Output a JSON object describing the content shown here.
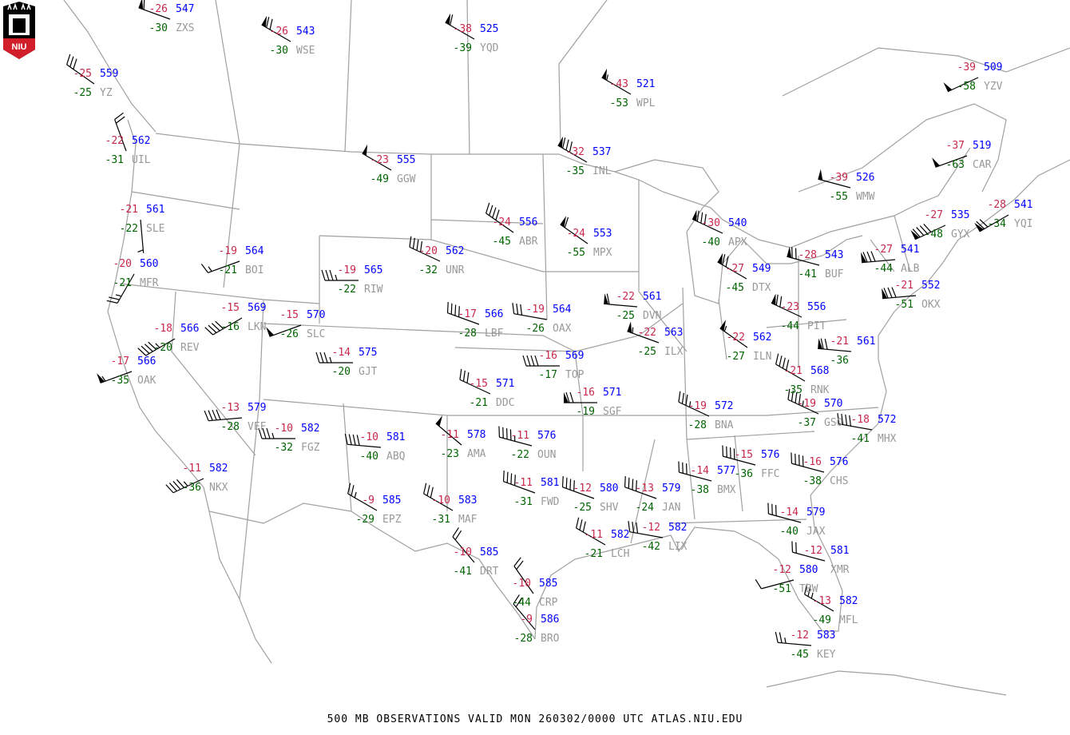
{
  "title": "500 MB OBSERVATIONS VALID  MON 260302/0000 UTC  ATLAS.NIU.EDU",
  "logo_text": "NIU",
  "colors": {
    "temperature": "#c8284b",
    "height": "#0000ff",
    "dewpoint_depression": "#006400",
    "station_id": "#999999",
    "borders": "#a0a0a0",
    "barbs": "#000000"
  },
  "wind_units": "kt",
  "stations": [
    {
      "id": "ZXS",
      "temp": -26,
      "height": 547,
      "dd": -30,
      "wdir": 290,
      "wspd": 60
    },
    {
      "id": "WSE",
      "temp": -26,
      "height": 543,
      "dd": -30,
      "wdir": 300,
      "wspd": 70
    },
    {
      "id": "YZ",
      "temp": -25,
      "height": 559,
      "dd": -25,
      "wdir": 305,
      "wspd": 30
    },
    {
      "id": "UIL",
      "temp": -22,
      "height": 562,
      "dd": -31,
      "wdir": 340,
      "wspd": 20
    },
    {
      "id": "SLE",
      "temp": -21,
      "height": 561,
      "dd": -22,
      "wdir": 175,
      "wspd": 5
    },
    {
      "id": "MFR",
      "temp": -20,
      "height": 560,
      "dd": -21,
      "wdir": 210,
      "wspd": 25
    },
    {
      "id": "BOI",
      "temp": -19,
      "height": 564,
      "dd": -21,
      "wdir": 250,
      "wspd": 15
    },
    {
      "id": "LKN",
      "temp": -15,
      "height": 569,
      "dd": -16,
      "wdir": 240,
      "wspd": 40
    },
    {
      "id": "SLC",
      "temp": -15,
      "height": 570,
      "dd": -26,
      "wdir": 250,
      "wspd": 50
    },
    {
      "id": "REV",
      "temp": -18,
      "height": 566,
      "dd": -20,
      "wdir": 240,
      "wspd": 45
    },
    {
      "id": "OAK",
      "temp": -17,
      "height": 566,
      "dd": -35,
      "wdir": 250,
      "wspd": 55
    },
    {
      "id": "NKX",
      "temp": -11,
      "height": 582,
      "dd": -36,
      "wdir": 245,
      "wspd": 45
    },
    {
      "id": "VEF",
      "temp": -13,
      "height": 579,
      "dd": -28,
      "wdir": 265,
      "wspd": 40
    },
    {
      "id": "FGZ",
      "temp": -10,
      "height": 582,
      "dd": -32,
      "wdir": 270,
      "wspd": 35
    },
    {
      "id": "RIW",
      "temp": -19,
      "height": 565,
      "dd": -22,
      "wdir": 270,
      "wspd": 35
    },
    {
      "id": "GJT",
      "temp": -14,
      "height": 575,
      "dd": -20,
      "wdir": 270,
      "wspd": 35
    },
    {
      "id": "GGW",
      "temp": -23,
      "height": 555,
      "dd": -49,
      "wdir": 300,
      "wspd": 50
    },
    {
      "id": "YQD",
      "temp": -38,
      "height": 525,
      "dd": -39,
      "wdir": 300,
      "wspd": 60
    },
    {
      "id": "WPL",
      "temp": -43,
      "height": 521,
      "dd": -53,
      "wdir": 300,
      "wspd": 55
    },
    {
      "id": "INL",
      "temp": -32,
      "height": 537,
      "dd": -35,
      "wdir": 300,
      "wspd": 80
    },
    {
      "id": "UNR",
      "temp": -20,
      "height": 562,
      "dd": -32,
      "wdir": 295,
      "wspd": 40
    },
    {
      "id": "ABR",
      "temp": -24,
      "height": 556,
      "dd": -45,
      "wdir": 305,
      "wspd": 40
    },
    {
      "id": "MPX",
      "temp": -24,
      "height": 553,
      "dd": -55,
      "wdir": 305,
      "wspd": 60
    },
    {
      "id": "LBF",
      "temp": -17,
      "height": 566,
      "dd": -28,
      "wdir": 290,
      "wspd": 40
    },
    {
      "id": "OAX",
      "temp": -19,
      "height": 564,
      "dd": -26,
      "wdir": 280,
      "wspd": 30
    },
    {
      "id": "DDC",
      "temp": -15,
      "height": 571,
      "dd": -21,
      "wdir": 295,
      "wspd": 30
    },
    {
      "id": "TOP",
      "temp": -16,
      "height": 569,
      "dd": -17,
      "wdir": 270,
      "wspd": 40
    },
    {
      "id": "SGF",
      "temp": -16,
      "height": 571,
      "dd": -19,
      "wdir": 270,
      "wspd": 70
    },
    {
      "id": "DVN",
      "temp": -22,
      "height": 561,
      "dd": -25,
      "wdir": 275,
      "wspd": 60
    },
    {
      "id": "ILX",
      "temp": -22,
      "height": 563,
      "dd": -25,
      "wdir": 290,
      "wspd": 55
    },
    {
      "id": "ABQ",
      "temp": -10,
      "height": 581,
      "dd": -40,
      "wdir": 275,
      "wspd": 40
    },
    {
      "id": "AMA",
      "temp": -11,
      "height": 578,
      "dd": -23,
      "wdir": 310,
      "wspd": 50
    },
    {
      "id": "OUN",
      "temp": -11,
      "height": 576,
      "dd": -22,
      "wdir": 285,
      "wspd": 45
    },
    {
      "id": "EPZ",
      "temp": -9,
      "height": 585,
      "dd": -29,
      "wdir": 300,
      "wspd": 25
    },
    {
      "id": "MAF",
      "temp": -10,
      "height": 583,
      "dd": -31,
      "wdir": 300,
      "wspd": 30
    },
    {
      "id": "DRT",
      "temp": -10,
      "height": 585,
      "dd": -41,
      "wdir": 320,
      "wspd": 20
    },
    {
      "id": "CRP",
      "temp": -10,
      "height": 585,
      "dd": -44,
      "wdir": 325,
      "wspd": 20
    },
    {
      "id": "BRO",
      "temp": -9,
      "height": 586,
      "dd": -28,
      "wdir": 320,
      "wspd": 20
    },
    {
      "id": "FWD",
      "temp": -11,
      "height": 581,
      "dd": -31,
      "wdir": 290,
      "wspd": 40
    },
    {
      "id": "SHV",
      "temp": -12,
      "height": 580,
      "dd": -25,
      "wdir": 290,
      "wspd": 40
    },
    {
      "id": "JAN",
      "temp": -13,
      "height": 579,
      "dd": -24,
      "wdir": 290,
      "wspd": 40
    },
    {
      "id": "LCH",
      "temp": -11,
      "height": 582,
      "dd": -21,
      "wdir": 300,
      "wspd": 30
    },
    {
      "id": "LIX",
      "temp": -12,
      "height": 582,
      "dd": -42,
      "wdir": 280,
      "wspd": 30
    },
    {
      "id": "BMX",
      "temp": -14,
      "height": 577,
      "dd": -38,
      "wdir": 285,
      "wspd": 30
    },
    {
      "id": "FFC",
      "temp": -15,
      "height": 576,
      "dd": -36,
      "wdir": 285,
      "wspd": 40
    },
    {
      "id": "CHS",
      "temp": -16,
      "height": 576,
      "dd": -38,
      "wdir": 285,
      "wspd": 40
    },
    {
      "id": "JAX",
      "temp": -14,
      "height": 579,
      "dd": -40,
      "wdir": 285,
      "wspd": 30
    },
    {
      "id": "XMR",
      "temp": -12,
      "height": 581,
      "dd": null,
      "wdir": 285,
      "wspd": 20
    },
    {
      "id": "TBW",
      "temp": -12,
      "height": 580,
      "dd": -51,
      "wdir": 255,
      "wspd": 10
    },
    {
      "id": "MFL",
      "temp": -13,
      "height": 582,
      "dd": -49,
      "wdir": 300,
      "wspd": 25
    },
    {
      "id": "KEY",
      "temp": -12,
      "height": 583,
      "dd": -45,
      "wdir": 275,
      "wspd": 25
    },
    {
      "id": "BNA",
      "temp": -19,
      "height": 572,
      "dd": -28,
      "wdir": 295,
      "wspd": 35
    },
    {
      "id": "ILN",
      "temp": -22,
      "height": 562,
      "dd": -27,
      "wdir": 305,
      "wspd": 55
    },
    {
      "id": "PIT",
      "temp": -23,
      "height": 556,
      "dd": -44,
      "wdir": 295,
      "wspd": 70
    },
    {
      "id": "",
      "temp": -21,
      "height": 561,
      "dd": -36,
      "wdir": 275,
      "wspd": 70
    },
    {
      "id": "RNK",
      "temp": -21,
      "height": 568,
      "dd": -35,
      "wdir": 300,
      "wspd": 40
    },
    {
      "id": "GSO",
      "temp": -19,
      "height": 570,
      "dd": -37,
      "wdir": 295,
      "wspd": 45
    },
    {
      "id": "MHX",
      "temp": -18,
      "height": 572,
      "dd": -41,
      "wdir": 280,
      "wspd": 40
    },
    {
      "id": "DTX",
      "temp": -27,
      "height": 549,
      "dd": -45,
      "wdir": 300,
      "wspd": 70
    },
    {
      "id": "APX",
      "temp": -30,
      "height": 540,
      "dd": -40,
      "wdir": 295,
      "wspd": 80
    },
    {
      "id": "BUF",
      "temp": -28,
      "height": 543,
      "dd": -41,
      "wdir": 285,
      "wspd": 70
    },
    {
      "id": "ALB",
      "temp": -27,
      "height": 541,
      "dd": -44,
      "wdir": 265,
      "wspd": 80
    },
    {
      "id": "OKX",
      "temp": -21,
      "height": 552,
      "dd": -51,
      "wdir": 265,
      "wspd": 80
    },
    {
      "id": "GYX",
      "temp": -27,
      "height": 535,
      "dd": -48,
      "wdir": 245,
      "wspd": 90
    },
    {
      "id": "YQI",
      "temp": -28,
      "height": 541,
      "dd": -34,
      "wdir": 240,
      "wspd": 70
    },
    {
      "id": "CAR",
      "temp": -37,
      "height": 519,
      "dd": -63,
      "wdir": 250,
      "wspd": 50
    },
    {
      "id": "YZV",
      "temp": -39,
      "height": 509,
      "dd": -58,
      "wdir": 245,
      "wspd": 50
    },
    {
      "id": "WMW",
      "temp": -39,
      "height": 526,
      "dd": -55,
      "wdir": 285,
      "wspd": 50
    }
  ]
}
